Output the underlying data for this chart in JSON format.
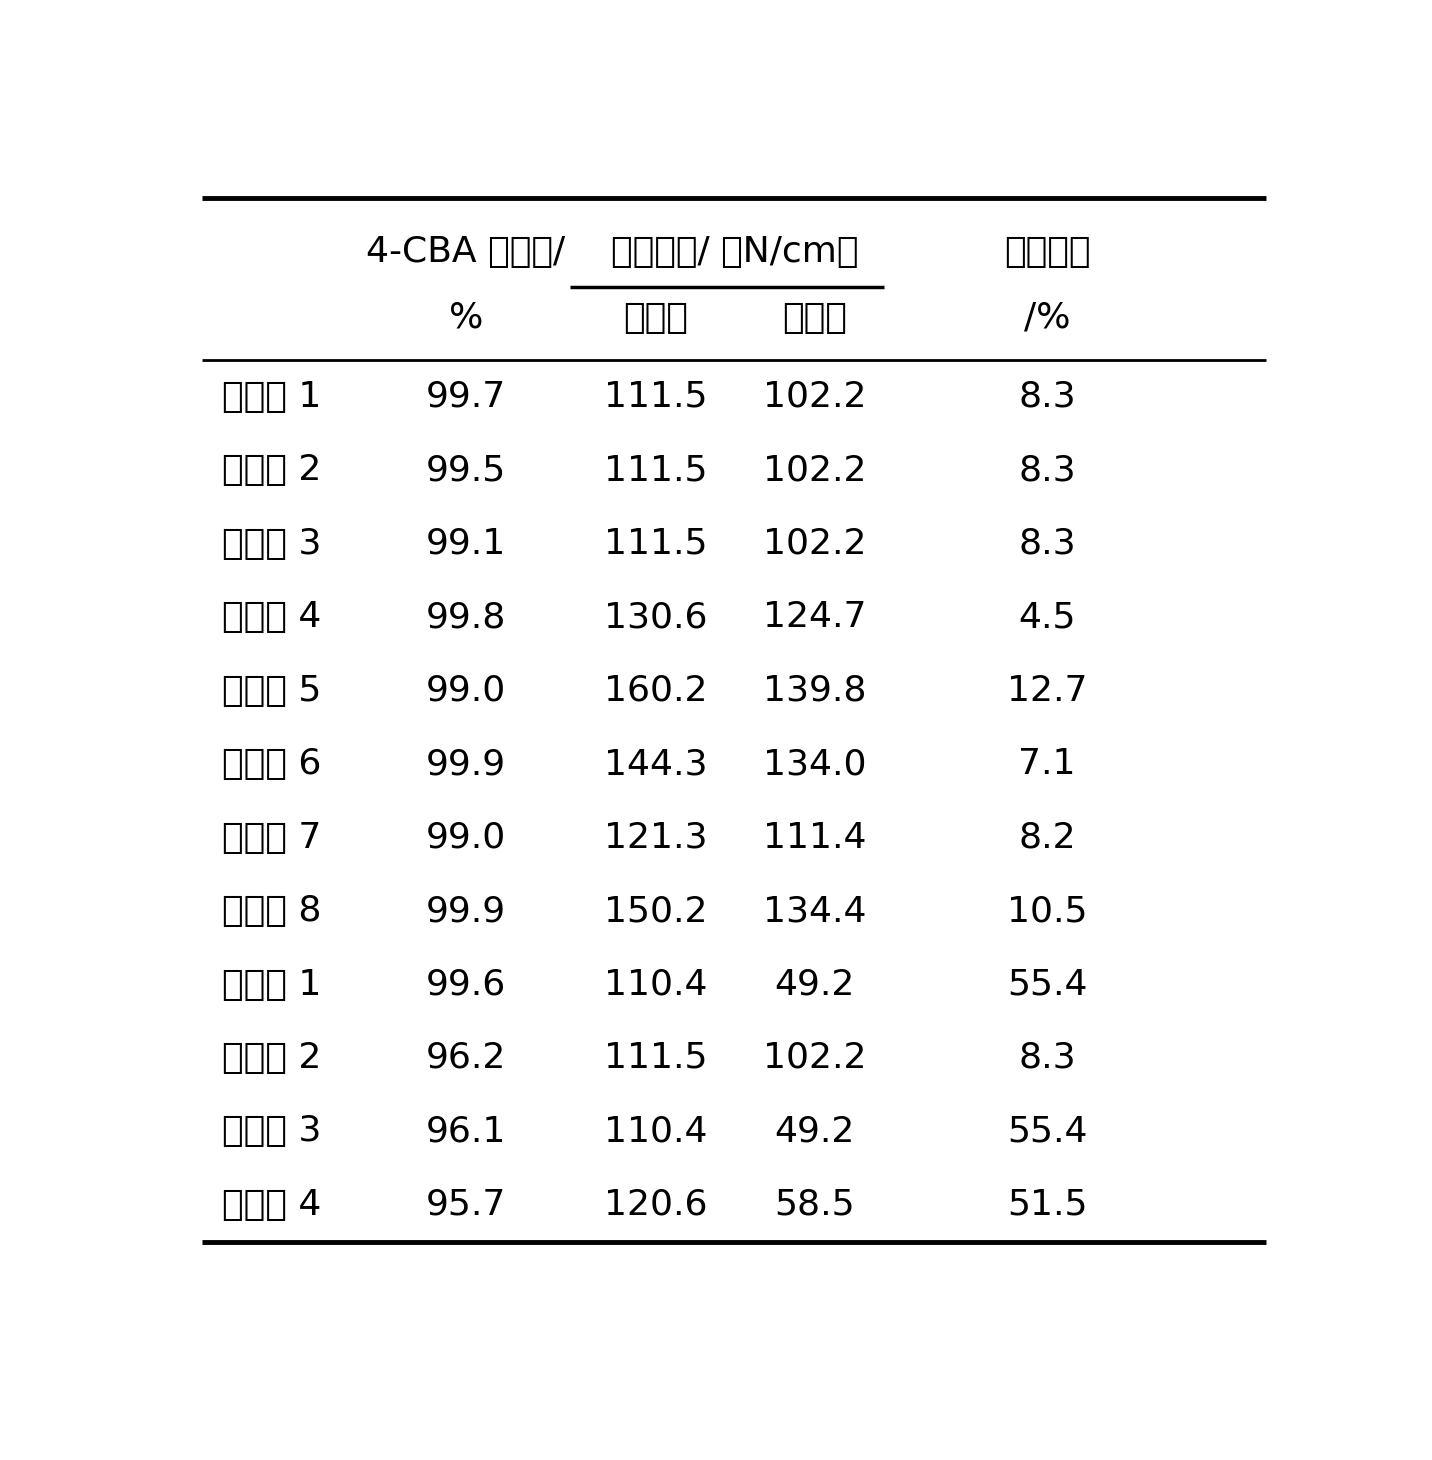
{
  "col1_header_line1": "4-CBA 转化率/",
  "col1_header_line2": "%",
  "col2_header_line1": "抗压强度/ （N/cm）",
  "col2_header_sub1": "反应前",
  "col2_header_sub2": "反应后",
  "col3_header_line1": "强度损失",
  "col3_header_line2": "/%",
  "rows": [
    [
      "实施例 1",
      "99.7",
      "111.5",
      "102.2",
      "8.3"
    ],
    [
      "实施例 2",
      "99.5",
      "111.5",
      "102.2",
      "8.3"
    ],
    [
      "实施例 3",
      "99.1",
      "111.5",
      "102.2",
      "8.3"
    ],
    [
      "实施例 4",
      "99.8",
      "130.6",
      "124.7",
      "4.5"
    ],
    [
      "实施例 5",
      "99.0",
      "160.2",
      "139.8",
      "12.7"
    ],
    [
      "实施例 6",
      "99.9",
      "144.3",
      "134.0",
      "7.1"
    ],
    [
      "实施例 7",
      "99.0",
      "121.3",
      "111.4",
      "8.2"
    ],
    [
      "实施例 8",
      "99.9",
      "150.2",
      "134.4",
      "10.5"
    ],
    [
      "对比例 1",
      "99.6",
      "110.4",
      "49.2",
      "55.4"
    ],
    [
      "对比例 2",
      "96.2",
      "111.5",
      "102.2",
      "8.3"
    ],
    [
      "对比例 3",
      "96.1",
      "110.4",
      "49.2",
      "55.4"
    ],
    [
      "对比例 4",
      "95.7",
      "120.6",
      "58.5",
      "51.5"
    ]
  ],
  "bg_color": "#ffffff",
  "text_color": "#000000",
  "font_size": 26,
  "fig_width": 14.32,
  "fig_height": 14.6,
  "dpi": 100
}
